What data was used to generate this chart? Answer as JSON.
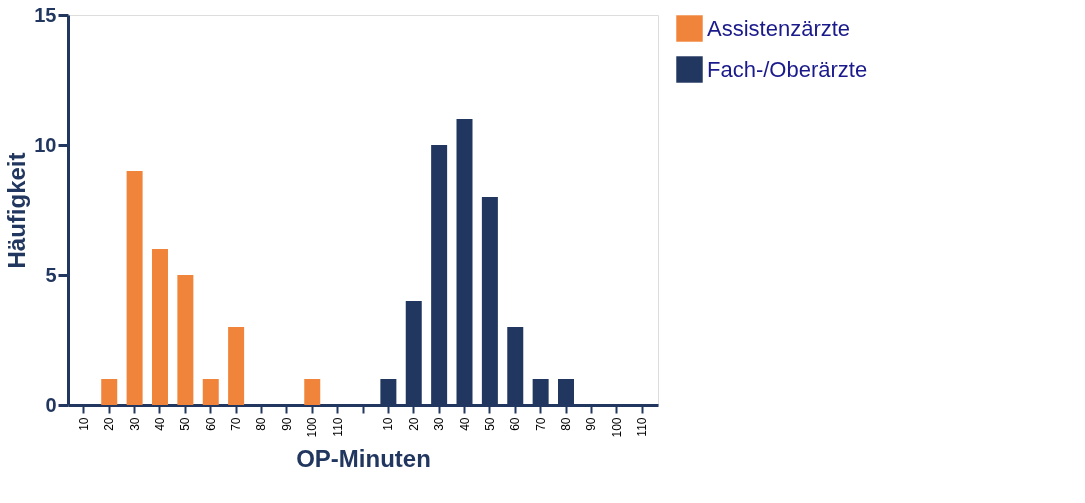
{
  "chart_data": {
    "type": "bar",
    "xlabel": "OP-Minuten",
    "ylabel": "Häufigkeit",
    "categories": [
      "10",
      "20",
      "30",
      "40",
      "50",
      "60",
      "70",
      "80",
      "90",
      "100",
      "110",
      null,
      "10",
      "20",
      "30",
      "40",
      "50",
      "60",
      "70",
      "80",
      "90",
      "100",
      "110"
    ],
    "series": [
      {
        "name": "Assistenzärzte",
        "color": "#f0843a",
        "values": [
          0,
          1,
          9,
          6,
          5,
          1,
          3,
          0,
          0,
          1,
          0,
          null,
          null,
          null,
          null,
          null,
          null,
          null,
          null,
          null,
          null,
          null,
          null
        ]
      },
      {
        "name": "Fach-/Oberärzte",
        "color": "#22375f",
        "values": [
          null,
          null,
          null,
          null,
          null,
          null,
          null,
          null,
          null,
          null,
          null,
          null,
          1,
          4,
          10,
          11,
          8,
          3,
          1,
          1,
          0,
          0,
          0
        ]
      }
    ],
    "ylim": [
      0,
      15
    ],
    "yticks": [
      0,
      5,
      10,
      15
    ],
    "grid": false,
    "legend": "top right"
  }
}
